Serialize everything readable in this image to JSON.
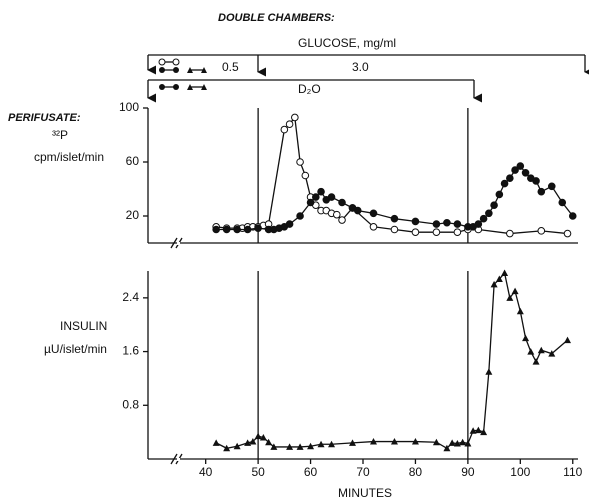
{
  "chart_data": [
    {
      "type": "line",
      "annotations": {
        "header": "DOUBLE CHAMBERS:",
        "glucose": "GLUCOSE, mg/ml",
        "low": "0.5",
        "high": "3.0",
        "d2o": "D₂O",
        "perifusate": "PERIFUSATE:"
      },
      "ylabel_top": "³²P",
      "ylabel": "cpm/islet/min",
      "xlim": [
        29,
        111
      ],
      "ylim": [
        0,
        100
      ],
      "yticks": [
        20,
        60,
        100
      ],
      "event_lines": [
        50,
        90
      ],
      "series": [
        {
          "marker": "open-circle",
          "color": "#111",
          "x": [
            42,
            44,
            46,
            47,
            48,
            49,
            50,
            51,
            52,
            55,
            56,
            57,
            58,
            59,
            60,
            61,
            62,
            63,
            64,
            65,
            66,
            68,
            72,
            76,
            80,
            84,
            88,
            90,
            92,
            98,
            104,
            109
          ],
          "values": [
            12,
            11,
            11,
            11,
            12,
            12,
            12,
            13,
            14,
            84,
            88,
            93,
            60,
            50,
            34,
            28,
            24,
            24,
            22,
            21,
            17,
            26,
            12,
            10,
            8,
            8,
            8,
            10,
            10,
            7,
            9,
            7
          ]
        },
        {
          "marker": "filled-circle",
          "color": "#111",
          "x": [
            42,
            44,
            46,
            48,
            50,
            52,
            53,
            54,
            55,
            56,
            58,
            60,
            61,
            62,
            63,
            64,
            66,
            68,
            69,
            72,
            76,
            80,
            84,
            86,
            88,
            90,
            91,
            92,
            93,
            94,
            95,
            96,
            97,
            98,
            99,
            100,
            101,
            102,
            103,
            104,
            106,
            108,
            110
          ],
          "values": [
            10,
            10,
            10,
            10,
            11,
            10,
            10,
            11,
            12,
            14,
            20,
            30,
            34,
            38,
            32,
            34,
            30,
            26,
            24,
            22,
            18,
            16,
            14,
            15,
            14,
            12,
            12,
            14,
            18,
            22,
            28,
            36,
            44,
            48,
            54,
            57,
            52,
            48,
            46,
            38,
            42,
            30,
            20
          ]
        }
      ]
    },
    {
      "type": "line",
      "ylabel_top": "INSULIN",
      "ylabel": "µU/islet/min",
      "xlabel": "MINUTES",
      "xlim": [
        29,
        111
      ],
      "ylim": [
        0,
        2.8
      ],
      "yticks": [
        0.8,
        1.6,
        2.4
      ],
      "xticks": [
        40,
        50,
        60,
        70,
        80,
        90,
        100,
        110
      ],
      "event_lines": [
        50,
        90
      ],
      "series": [
        {
          "marker": "triangle",
          "color": "#111",
          "x": [
            42,
            44,
            46,
            48,
            49,
            50,
            51,
            52,
            53,
            56,
            58,
            60,
            62,
            64,
            68,
            72,
            76,
            80,
            84,
            86,
            87,
            88,
            89,
            90,
            91,
            92,
            93,
            94,
            95,
            96,
            97,
            98,
            99,
            100,
            101,
            102,
            103,
            104,
            106,
            109
          ],
          "values": [
            0.24,
            0.16,
            0.19,
            0.24,
            0.26,
            0.34,
            0.32,
            0.25,
            0.18,
            0.18,
            0.18,
            0.19,
            0.22,
            0.22,
            0.24,
            0.26,
            0.26,
            0.26,
            0.25,
            0.16,
            0.24,
            0.23,
            0.25,
            0.23,
            0.42,
            0.43,
            0.4,
            1.3,
            2.6,
            2.68,
            2.77,
            2.4,
            2.5,
            2.2,
            1.8,
            1.6,
            1.45,
            1.62,
            1.57,
            1.77
          ]
        }
      ]
    }
  ]
}
